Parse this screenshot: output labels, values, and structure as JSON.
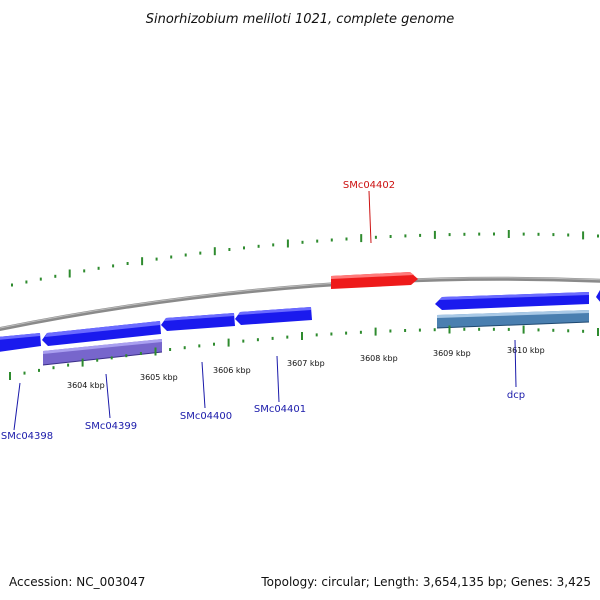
{
  "title": "Sinorhizobium meliloti 1021, complete genome",
  "footer": {
    "accession": "Accession: NC_003047",
    "summary": "Topology: circular; Length: 3,654,135 bp; Genes: 3,425"
  },
  "colors": {
    "backbone": "#8a8a8a",
    "tick": "#2e8b2e",
    "gene_forward": "#1a1aee",
    "gene_highlight": "#ee1a1a",
    "gene_purple": "#7766cc",
    "gene_steel": "#4a7fb0",
    "label_blue": "#1a1aaa",
    "label_red": "#cc1111"
  },
  "scale_labels": [
    "3604 kbp",
    "3605 kbp",
    "3606 kbp",
    "3607 kbp",
    "3608 kbp",
    "3609 kbp",
    "3610 kbp"
  ],
  "gene_labels": [
    {
      "text": "SMc04402",
      "color": "red"
    },
    {
      "text": "SMc04398",
      "color": "blue"
    },
    {
      "text": "SMc04399",
      "color": "blue"
    },
    {
      "text": "SMc04400",
      "color": "blue"
    },
    {
      "text": "SMc04401",
      "color": "blue"
    },
    {
      "text": "dcp",
      "color": "blue"
    }
  ]
}
